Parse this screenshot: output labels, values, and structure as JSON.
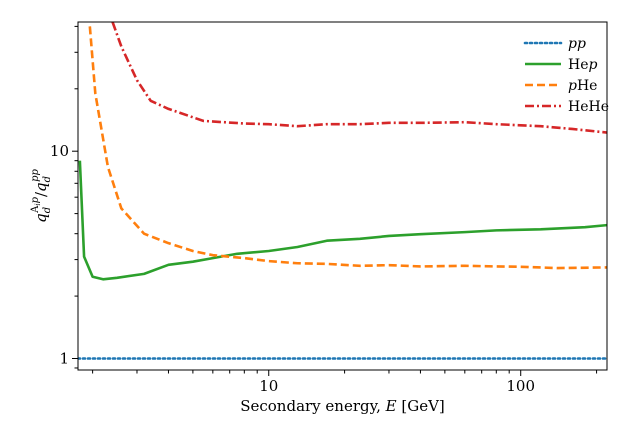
{
  "chart_data": {
    "type": "line",
    "title": "",
    "xlabel": "Secondary energy, E [GeV]",
    "xlabel_parts": {
      "prefix": "Secondary energy, ",
      "var": "E",
      "suffix": " [GeV]"
    },
    "ylabel": "q_d^{A_i p} / q_d^{pp}",
    "ylabel_parts": {
      "q1": "q",
      "sub1": "d",
      "sup1": "A",
      "sup1_sub": "i",
      "sup1_tail": "p",
      "slash": "/",
      "q2": "q",
      "sub2": "d",
      "sup2": "pp"
    },
    "x_scale": "log",
    "y_scale": "log",
    "xlim": [
      1.75,
      220
    ],
    "ylim": [
      0.88,
      42
    ],
    "x_ticks": [
      {
        "value": 10,
        "label": "10"
      },
      {
        "value": 100,
        "label": "100"
      }
    ],
    "y_ticks": [
      {
        "value": 1,
        "label": "1"
      },
      {
        "value": 10,
        "label": "10"
      }
    ],
    "legend_position": "top-right",
    "series": [
      {
        "name": "pp",
        "label_parts": [
          {
            "t": "pp",
            "italic": true
          }
        ],
        "color": "#1f77b4",
        "style": "dotted",
        "x": [
          1.75,
          220
        ],
        "y": [
          1.0,
          1.0
        ]
      },
      {
        "name": "Hep",
        "label_parts": [
          {
            "t": "He",
            "italic": false
          },
          {
            "t": "p",
            "italic": true
          }
        ],
        "color": "#2ca02c",
        "style": "solid",
        "x": [
          1.78,
          1.85,
          2.0,
          2.2,
          2.5,
          3.2,
          4.0,
          5.0,
          6.0,
          7.5,
          10,
          13,
          17,
          23,
          30,
          40,
          60,
          80,
          120,
          180,
          220
        ],
        "y": [
          9.0,
          3.1,
          2.48,
          2.41,
          2.45,
          2.56,
          2.83,
          2.93,
          3.05,
          3.2,
          3.3,
          3.45,
          3.7,
          3.78,
          3.9,
          3.98,
          4.07,
          4.15,
          4.2,
          4.3,
          4.4
        ]
      },
      {
        "name": "pHe",
        "label_parts": [
          {
            "t": "p",
            "italic": true
          },
          {
            "t": "He",
            "italic": false
          }
        ],
        "color": "#ff7f0e",
        "style": "dashed",
        "x": [
          1.95,
          2.05,
          2.3,
          2.6,
          3.2,
          4.0,
          5.0,
          6.0,
          8.0,
          10,
          13,
          17,
          23,
          30,
          40,
          60,
          80,
          100,
          140,
          220
        ],
        "y": [
          40,
          19,
          8.4,
          5.3,
          4.0,
          3.6,
          3.3,
          3.15,
          3.05,
          2.95,
          2.88,
          2.86,
          2.8,
          2.82,
          2.78,
          2.8,
          2.78,
          2.77,
          2.73,
          2.75
        ]
      },
      {
        "name": "HeHe",
        "label_parts": [
          {
            "t": "HeHe",
            "italic": false
          }
        ],
        "color": "#d62728",
        "style": "dashdot",
        "x": [
          2.4,
          2.6,
          3.0,
          3.4,
          4.0,
          5.5,
          8.0,
          10,
          13,
          17,
          23,
          30,
          40,
          60,
          80,
          120,
          160,
          220
        ],
        "y": [
          42,
          32,
          22,
          17.5,
          16,
          14,
          13.6,
          13.5,
          13.2,
          13.5,
          13.5,
          13.7,
          13.7,
          13.8,
          13.5,
          13.2,
          12.8,
          12.3
        ]
      }
    ]
  }
}
